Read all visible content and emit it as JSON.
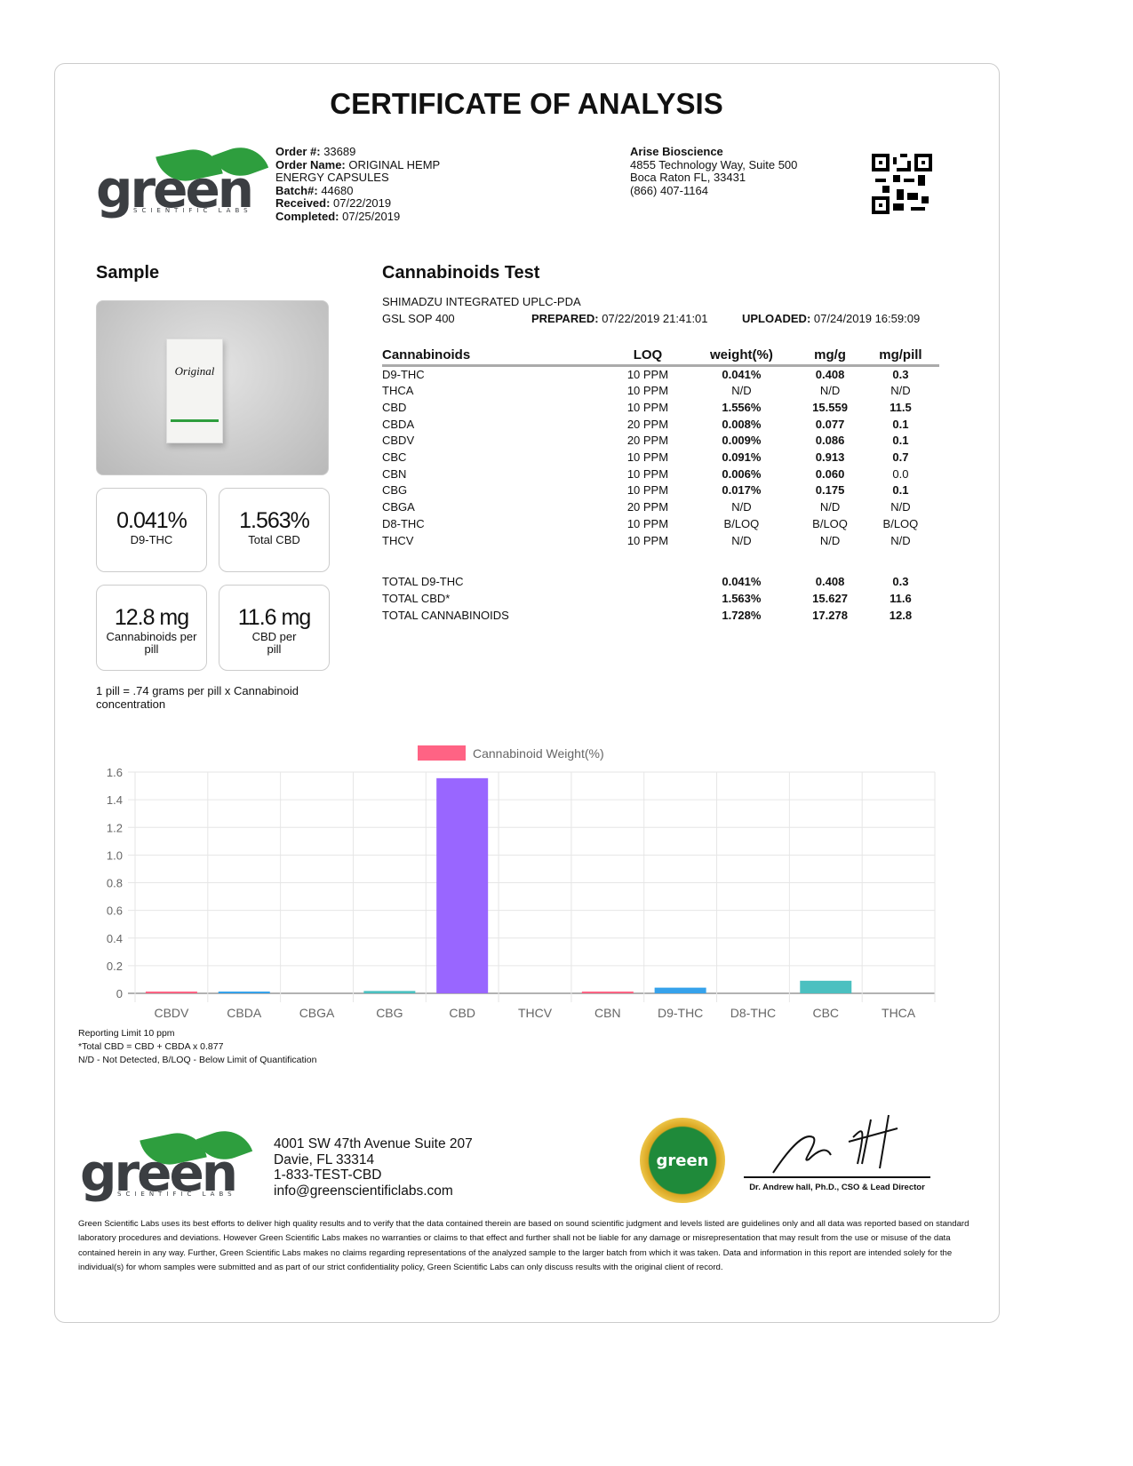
{
  "title": "CERTIFICATE OF ANALYSIS",
  "logo": {
    "text": "green",
    "sub": "SCIENTIFIC LABS",
    "tm": "™"
  },
  "order": {
    "order_no_label": "Order #:",
    "order_no": "33689",
    "order_name_label": "Order Name:",
    "order_name_1": "ORIGINAL HEMP",
    "order_name_2": "ENERGY CAPSULES",
    "batch_label": "Batch#:",
    "batch": "44680",
    "received_label": "Received:",
    "received": "07/22/2019",
    "completed_label": "Completed:",
    "completed": "07/25/2019"
  },
  "client": {
    "name": "Arise Bioscience",
    "address1": "4855 Technology Way, Suite 500",
    "address2": "Boca Raton FL, 33431",
    "phone": "(866) 407-1164"
  },
  "sample": {
    "heading": "Sample",
    "stats": [
      {
        "value": "0.041%",
        "label": "D9-THC"
      },
      {
        "value": "1.563%",
        "label": "Total CBD"
      },
      {
        "value": "12.8 mg",
        "label": "Cannabinoids per pill"
      },
      {
        "value": "11.6 mg",
        "label": "CBD per pill"
      }
    ],
    "note": "1 pill = .74 grams per pill x Cannabinoid concentration"
  },
  "test": {
    "heading": "Cannabinoids Test",
    "method": "SHIMADZU INTEGRATED UPLC-PDA",
    "sop": "GSL SOP 400",
    "prepared_label": "PREPARED:",
    "prepared": "07/22/2019 21:41:01",
    "uploaded_label": "UPLOADED:",
    "uploaded": "07/24/2019 16:59:09",
    "columns": [
      "Cannabinoids",
      "LOQ",
      "weight(%)",
      "mg/g",
      "mg/pill"
    ],
    "rows": [
      [
        "D9-THC",
        "10 PPM",
        "0.041%",
        "0.408",
        "0.3"
      ],
      [
        "THCA",
        "10 PPM",
        "N/D",
        "N/D",
        "N/D"
      ],
      [
        "CBD",
        "10 PPM",
        "1.556%",
        "15.559",
        "11.5"
      ],
      [
        "CBDA",
        "20 PPM",
        "0.008%",
        "0.077",
        "0.1"
      ],
      [
        "CBDV",
        "20 PPM",
        "0.009%",
        "0.086",
        "0.1"
      ],
      [
        "CBC",
        "10 PPM",
        "0.091%",
        "0.913",
        "0.7"
      ],
      [
        "CBN",
        "10 PPM",
        "0.006%",
        "0.060",
        "0.0"
      ],
      [
        "CBG",
        "10 PPM",
        "0.017%",
        "0.175",
        "0.1"
      ],
      [
        "CBGA",
        "20 PPM",
        "N/D",
        "N/D",
        "N/D"
      ],
      [
        "D8-THC",
        "10 PPM",
        "B/LOQ",
        "B/LOQ",
        "B/LOQ"
      ],
      [
        "THCV",
        "10 PPM",
        "N/D",
        "N/D",
        "N/D"
      ]
    ],
    "totals": [
      [
        "TOTAL D9-THC",
        "",
        "0.041%",
        "0.408",
        "0.3"
      ],
      [
        "TOTAL CBD*",
        "",
        "1.563%",
        "15.627",
        "11.6"
      ],
      [
        "TOTAL CANNABINOIDS",
        "",
        "1.728%",
        "17.278",
        "12.8"
      ]
    ]
  },
  "chart_data": {
    "type": "bar",
    "legend": "Cannabinoid Weight(%)",
    "legend_color": "#ff6384",
    "legend_position": "top",
    "grid": true,
    "categories": [
      "CBDV",
      "CBDA",
      "CBGA",
      "CBG",
      "CBD",
      "THCV",
      "CBN",
      "D9-THC",
      "D8-THC",
      "CBC",
      "THCA"
    ],
    "values": [
      0.009,
      0.008,
      0,
      0.017,
      1.556,
      0,
      0.006,
      0.041,
      0,
      0.091,
      0
    ],
    "colors": [
      "#ff6384",
      "#36a2eb",
      "#ffce56",
      "#4bc0c0",
      "#9966ff",
      "#ff9f40",
      "#ff6384",
      "#36a2eb",
      "#ffce56",
      "#4bc0c0",
      "#9966ff"
    ],
    "ylim": [
      0,
      1.6
    ],
    "yticks": [
      "0",
      "0.2",
      "0.4",
      "0.6",
      "0.8",
      "1.0",
      "1.2",
      "1.4",
      "1.6"
    ]
  },
  "notes": [
    "Reporting Limit 10 ppm",
    "*Total CBD = CBD + CBDA x 0.877",
    "N/D - Not Detected, B/LOQ - Below Limit of Quantification"
  ],
  "footer": {
    "address1": "4001 SW 47th Avenue Suite 207",
    "address2": "Davie, FL 33314",
    "phone": "1-833-TEST-CBD",
    "email": "info@greenscientificlabs.com",
    "seal_text": "green",
    "signature_caption": "Dr. Andrew hall, Ph.D., CSO & Lead Director",
    "disclaimer": "Green Scientific Labs uses its best efforts to deliver high quality results and to verify that the data contained therein are based on sound scientific judgment and levels listed are guidelines only and all data was reported based on standard laboratory procedures and deviations. However Green Scientific Labs makes no warranties or claims to that effect and further shall not be liable for any damage or misrepresentation that may result from the use or misuse of the data contained herein in any way. Further, Green Scientific Labs makes no claims regarding representations of the analyzed sample to the larger batch from which it was taken. Data and information in this report are intended solely for the individual(s) for whom samples were submitted and as part of our strict confidentiality policy, Green Scientific Labs can only discuss results with the original client of record."
  }
}
